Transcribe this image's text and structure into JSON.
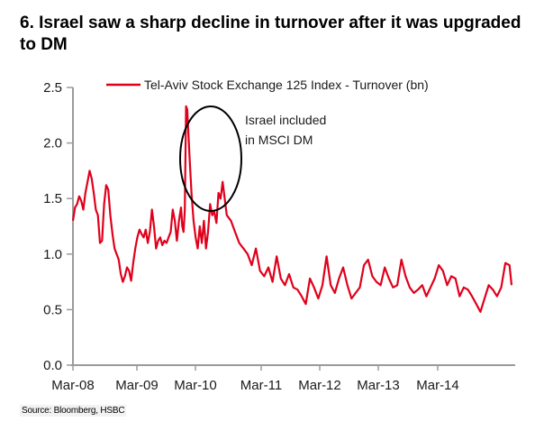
{
  "header": {
    "title": "6. Israel saw a sharp decline in turnover after it was upgraded to DM"
  },
  "footer": {
    "source": "Source: Bloomberg, HSBC"
  },
  "chart_data": {
    "type": "line",
    "title": "6. Israel saw a sharp decline in turnover after it was upgraded to DM",
    "xlabel": "",
    "ylabel": "",
    "ylim": [
      0,
      2.5
    ],
    "yticks": [
      0.0,
      0.5,
      1.0,
      1.5,
      2.0,
      2.5
    ],
    "ytick_labels": [
      "0.0",
      "0.5",
      "1.0",
      "1.5",
      "2.0",
      "2.5"
    ],
    "xlim": [
      "Mar-08",
      "Dec-14"
    ],
    "xtick_labels": [
      "Mar-08",
      "Mar-09",
      "Mar-10",
      "Mar-11",
      "Mar-12",
      "Mar-13",
      "Mar-14"
    ],
    "grid": false,
    "legend": {
      "position": "top",
      "entries": [
        "Tel-Aviv Stock Exchange 125 Index - Turnover (bn)"
      ]
    },
    "line_color": "#e0001b",
    "annotations": [
      {
        "text": [
          "Israel included",
          "in MSCI DM"
        ],
        "target_date": "May-10",
        "shape": "ellipse"
      }
    ],
    "series": [
      {
        "name": "Tel-Aviv Stock Exchange 125 Index - Turnover (bn)",
        "x_months": [
          0,
          0.5,
          1,
          1.5,
          2,
          2.5,
          3,
          3.5,
          4,
          4.5,
          5,
          5.5,
          6,
          6.5,
          7,
          7.5,
          8,
          8.5,
          9,
          9.5,
          10,
          10.5,
          11,
          11.5,
          12,
          12.5,
          13,
          13.5,
          14,
          14.5,
          15,
          15.5,
          16,
          16.5,
          17,
          17.5,
          18,
          18.5,
          19,
          19.5,
          20,
          20.5,
          21,
          21.5,
          22,
          22.5,
          23,
          23.5,
          24,
          24.5,
          25,
          25.5,
          26,
          26.3,
          26.6,
          26.9,
          27.2,
          27.5,
          28,
          28.5,
          29,
          29.5,
          30,
          30.5,
          31,
          31.5,
          32,
          32.5,
          33,
          33.5,
          34,
          34.5,
          35,
          35.5,
          36,
          37,
          38,
          39,
          40,
          41,
          42,
          43,
          44,
          45,
          46,
          47,
          48,
          49,
          50,
          51,
          52,
          53,
          54,
          55,
          56,
          57,
          58,
          59,
          60,
          61,
          62,
          63,
          64,
          65,
          66,
          67,
          68,
          69,
          70,
          71,
          72,
          73,
          74,
          75,
          76,
          77,
          78,
          79,
          80,
          81,
          82,
          83,
          84,
          85,
          86,
          87,
          88,
          89,
          90,
          91,
          92,
          93,
          94,
          95,
          96,
          97,
          98,
          99,
          100,
          101,
          102,
          103,
          104,
          105,
          105.5
        ],
        "values": [
          1.3,
          1.42,
          1.45,
          1.52,
          1.48,
          1.4,
          1.55,
          1.65,
          1.75,
          1.68,
          1.55,
          1.4,
          1.35,
          1.1,
          1.12,
          1.45,
          1.62,
          1.58,
          1.35,
          1.18,
          1.05,
          1.0,
          0.95,
          0.82,
          0.75,
          0.8,
          0.88,
          0.85,
          0.76,
          0.92,
          1.05,
          1.15,
          1.22,
          1.18,
          1.15,
          1.22,
          1.1,
          1.2,
          1.4,
          1.25,
          1.05,
          1.12,
          1.15,
          1.08,
          1.12,
          1.1,
          1.15,
          1.2,
          1.4,
          1.3,
          1.12,
          1.3,
          1.42,
          1.25,
          1.2,
          1.4,
          2.33,
          2.3,
          1.9,
          1.55,
          1.3,
          1.15,
          1.05,
          1.25,
          1.1,
          1.3,
          1.05,
          1.2,
          1.45,
          1.35,
          1.38,
          1.28,
          1.55,
          1.5,
          1.65,
          1.35,
          1.3,
          1.2,
          1.1,
          1.05,
          1.0,
          0.9,
          1.05,
          0.85,
          0.8,
          0.88,
          0.75,
          0.98,
          0.78,
          0.72,
          0.82,
          0.7,
          0.68,
          0.62,
          0.55,
          0.78,
          0.7,
          0.6,
          0.72,
          0.98,
          0.72,
          0.65,
          0.78,
          0.88,
          0.72,
          0.6,
          0.65,
          0.7,
          0.9,
          0.95,
          0.8,
          0.75,
          0.72,
          0.88,
          0.78,
          0.7,
          0.72,
          0.95,
          0.8,
          0.7,
          0.65,
          0.68,
          0.72,
          0.62,
          0.7,
          0.78,
          0.9,
          0.85,
          0.72,
          0.8,
          0.78,
          0.62,
          0.7,
          0.68,
          0.62,
          0.55,
          0.48,
          0.6,
          0.72,
          0.68,
          0.62,
          0.7,
          0.92,
          0.9,
          0.72,
          0.7
        ]
      }
    ]
  }
}
